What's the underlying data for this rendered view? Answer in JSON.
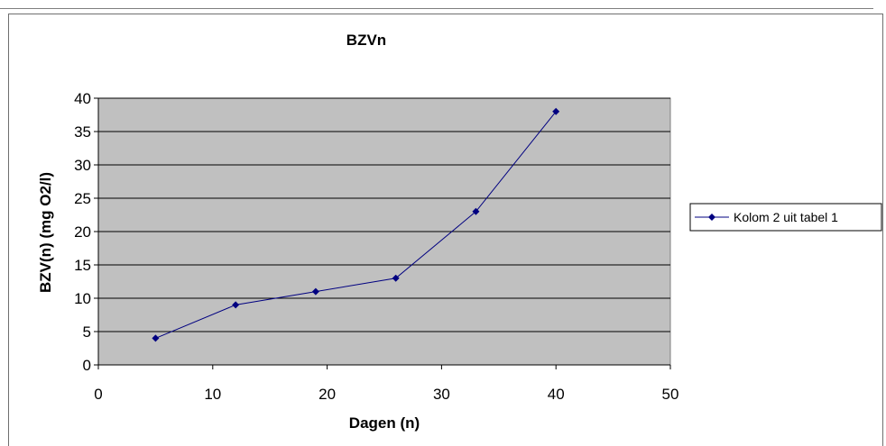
{
  "chart_data": {
    "type": "line",
    "title": "BZVn",
    "xlabel": "Dagen (n)",
    "ylabel": "BZV(n) (mg O2/l)",
    "xlim": [
      0,
      50
    ],
    "ylim": [
      0,
      40
    ],
    "xticks": [
      0,
      10,
      20,
      30,
      40,
      50
    ],
    "yticks": [
      0,
      5,
      10,
      15,
      20,
      25,
      30,
      35,
      40
    ],
    "grid": "horizontal",
    "legend_position": "right",
    "series": [
      {
        "name": "Kolom 2 uit tabel 1",
        "x": [
          5,
          12,
          19,
          26,
          33,
          40
        ],
        "y": [
          4,
          9,
          11,
          13,
          23,
          38
        ]
      }
    ],
    "colors": {
      "plot_background": "#c0c0c0",
      "series": "#000080",
      "gridline": "#000000"
    }
  }
}
